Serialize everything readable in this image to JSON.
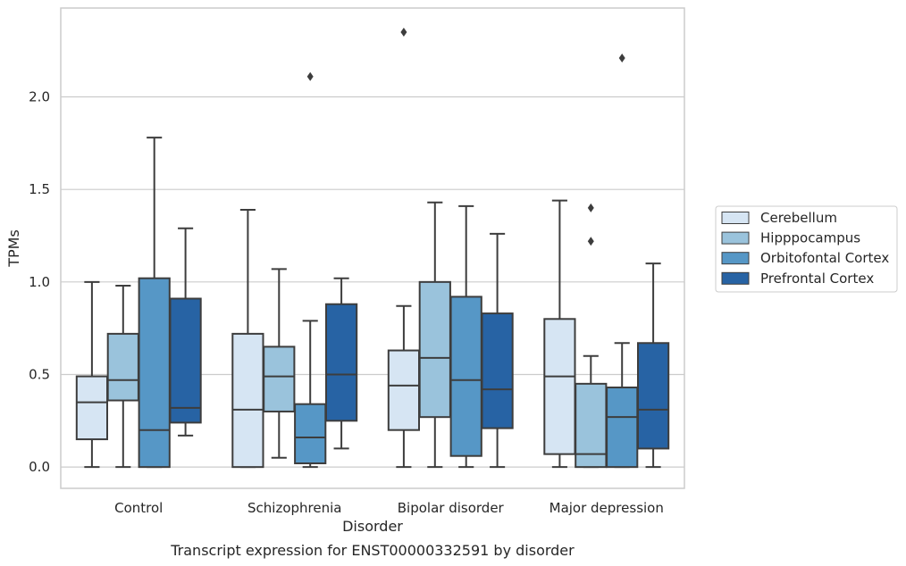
{
  "chart_data": {
    "type": "box",
    "caption": "Transcript expression for ENST00000332591 by disorder",
    "xlabel": "Disorder",
    "ylabel": "TPMs",
    "ylim": [
      -0.115,
      2.48
    ],
    "yticks": [
      "0.0",
      "0.5",
      "1.0",
      "1.5",
      "2.0"
    ],
    "grid": true,
    "legend_position": "right, outside plot",
    "categories": [
      "Control",
      "Schizophrenia",
      "Bipolar disorder",
      "Major depression"
    ],
    "series": [
      {
        "name": "Cerebellum",
        "color": "#d6e5f3",
        "boxes": [
          {
            "whislo": 0.0,
            "q1": 0.15,
            "med": 0.35,
            "q3": 0.49,
            "whishi": 1.0,
            "fliers": []
          },
          {
            "whislo": 0.0,
            "q1": 0.0,
            "med": 0.31,
            "q3": 0.72,
            "whishi": 1.39,
            "fliers": []
          },
          {
            "whislo": 0.0,
            "q1": 0.2,
            "med": 0.44,
            "q3": 0.63,
            "whishi": 0.87,
            "fliers": [
              2.35
            ]
          },
          {
            "whislo": 0.0,
            "q1": 0.07,
            "med": 0.49,
            "q3": 0.8,
            "whishi": 1.44,
            "fliers": []
          }
        ]
      },
      {
        "name": "Hipppocampus",
        "color": "#9ac3dc",
        "boxes": [
          {
            "whislo": 0.0,
            "q1": 0.36,
            "med": 0.47,
            "q3": 0.72,
            "whishi": 0.98,
            "fliers": []
          },
          {
            "whislo": 0.05,
            "q1": 0.3,
            "med": 0.49,
            "q3": 0.65,
            "whishi": 1.07,
            "fliers": []
          },
          {
            "whislo": 0.0,
            "q1": 0.27,
            "med": 0.59,
            "q3": 1.0,
            "whishi": 1.43,
            "fliers": []
          },
          {
            "whislo": 0.0,
            "q1": 0.0,
            "med": 0.07,
            "q3": 0.45,
            "whishi": 0.6,
            "fliers": [
              1.22,
              1.4
            ]
          }
        ]
      },
      {
        "name": "Orbitofontal Cortex",
        "color": "#5697c6",
        "boxes": [
          {
            "whislo": 0.0,
            "q1": 0.0,
            "med": 0.2,
            "q3": 1.02,
            "whishi": 1.78,
            "fliers": []
          },
          {
            "whislo": 0.0,
            "q1": 0.02,
            "med": 0.16,
            "q3": 0.34,
            "whishi": 0.79,
            "fliers": [
              2.11
            ]
          },
          {
            "whislo": 0.0,
            "q1": 0.06,
            "med": 0.47,
            "q3": 0.92,
            "whishi": 1.41,
            "fliers": []
          },
          {
            "whislo": 0.0,
            "q1": 0.0,
            "med": 0.27,
            "q3": 0.43,
            "whishi": 0.67,
            "fliers": [
              2.21
            ]
          }
        ]
      },
      {
        "name": "Prefrontal Cortex",
        "color": "#2763a4",
        "boxes": [
          {
            "whislo": 0.17,
            "q1": 0.24,
            "med": 0.32,
            "q3": 0.91,
            "whishi": 1.29,
            "fliers": []
          },
          {
            "whislo": 0.1,
            "q1": 0.25,
            "med": 0.5,
            "q3": 0.88,
            "whishi": 1.02,
            "fliers": []
          },
          {
            "whislo": 0.0,
            "q1": 0.21,
            "med": 0.42,
            "q3": 0.83,
            "whishi": 1.26,
            "fliers": []
          },
          {
            "whislo": 0.0,
            "q1": 0.1,
            "med": 0.31,
            "q3": 0.67,
            "whishi": 1.1,
            "fliers": []
          }
        ]
      }
    ]
  }
}
